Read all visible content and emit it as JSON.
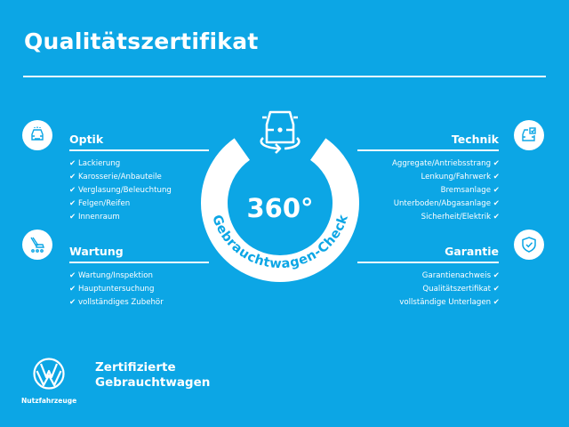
{
  "title": "Qualitätszertifikat",
  "check_mark": "✔",
  "center": {
    "value": "360°",
    "label": "Gebrauchtwagen-Check"
  },
  "sections": {
    "optik": {
      "heading": "Optik",
      "icon": "car-front-icon",
      "items": [
        "Lackierung",
        "Karosserie/Anbauteile",
        "Verglasung/Beleuchtung",
        "Felgen/Reifen",
        "Innenraum"
      ]
    },
    "wartung": {
      "heading": "Wartung",
      "icon": "maintenance-tools-icon",
      "items": [
        "Wartung/Inspektion",
        "Hauptuntersuchung",
        "vollständiges Zubehör"
      ]
    },
    "technik": {
      "heading": "Technik",
      "icon": "car-checklist-icon",
      "items": [
        "Aggregate/Antriebsstrang",
        "Lenkung/Fahrwerk",
        "Bremsanlage",
        "Unterboden/Abgasanlage",
        "Sicherheit/Elektrik"
      ]
    },
    "garantie": {
      "heading": "Garantie",
      "icon": "shield-check-icon",
      "items": [
        "Garantienachweis",
        "Qualitätszertifikat",
        "vollständige Unterlagen"
      ]
    }
  },
  "footer": {
    "brand_line1": "Zertifizierte",
    "brand_line2": "Gebrauchtwagen",
    "logo_caption": "Nutzfahrzeuge"
  },
  "colors": {
    "background": "#0ca6e5",
    "foreground": "#ffffff"
  }
}
